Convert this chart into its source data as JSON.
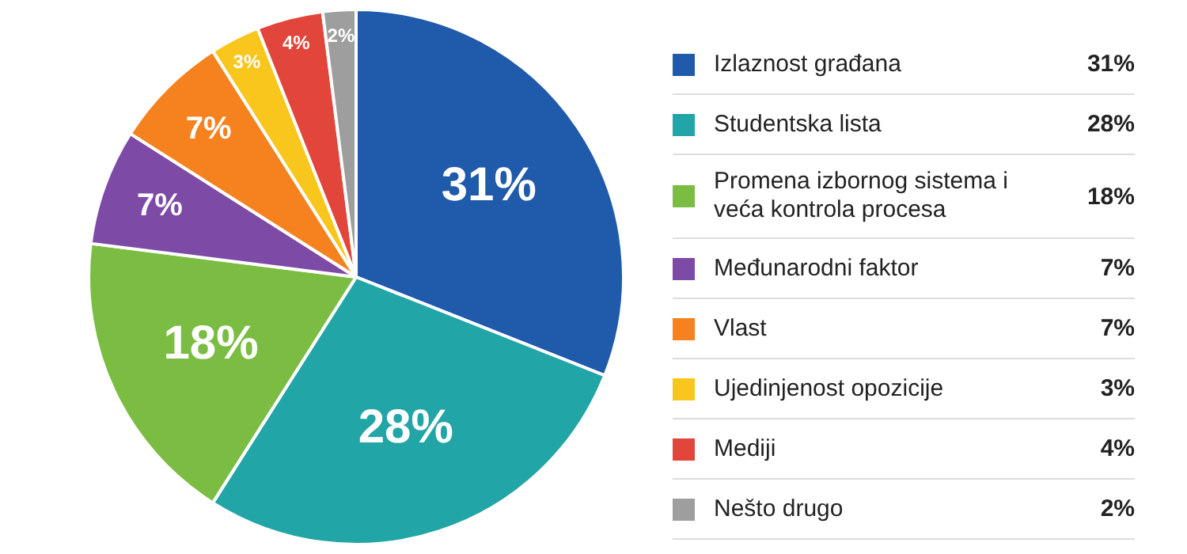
{
  "chart_data": {
    "type": "pie",
    "categories": [
      "Izlaznost građana",
      "Studentska lista",
      "Promena izbornog sistema i veća kontrola procesa",
      "Međunarodni faktor",
      "Vlast",
      "Ujedinjenost opozicije",
      "Mediji",
      "Nešto drugo"
    ],
    "values": [
      31,
      28,
      18,
      7,
      7,
      3,
      4,
      2
    ],
    "value_labels": [
      "31%",
      "28%",
      "18%",
      "7%",
      "7%",
      "3%",
      "4%",
      "2%"
    ],
    "colors": [
      "#1f5aab",
      "#22a5a6",
      "#7bbd43",
      "#7d4aa6",
      "#f5821f",
      "#f8c61d",
      "#e2463a",
      "#9e9e9e"
    ],
    "legend": "right"
  }
}
